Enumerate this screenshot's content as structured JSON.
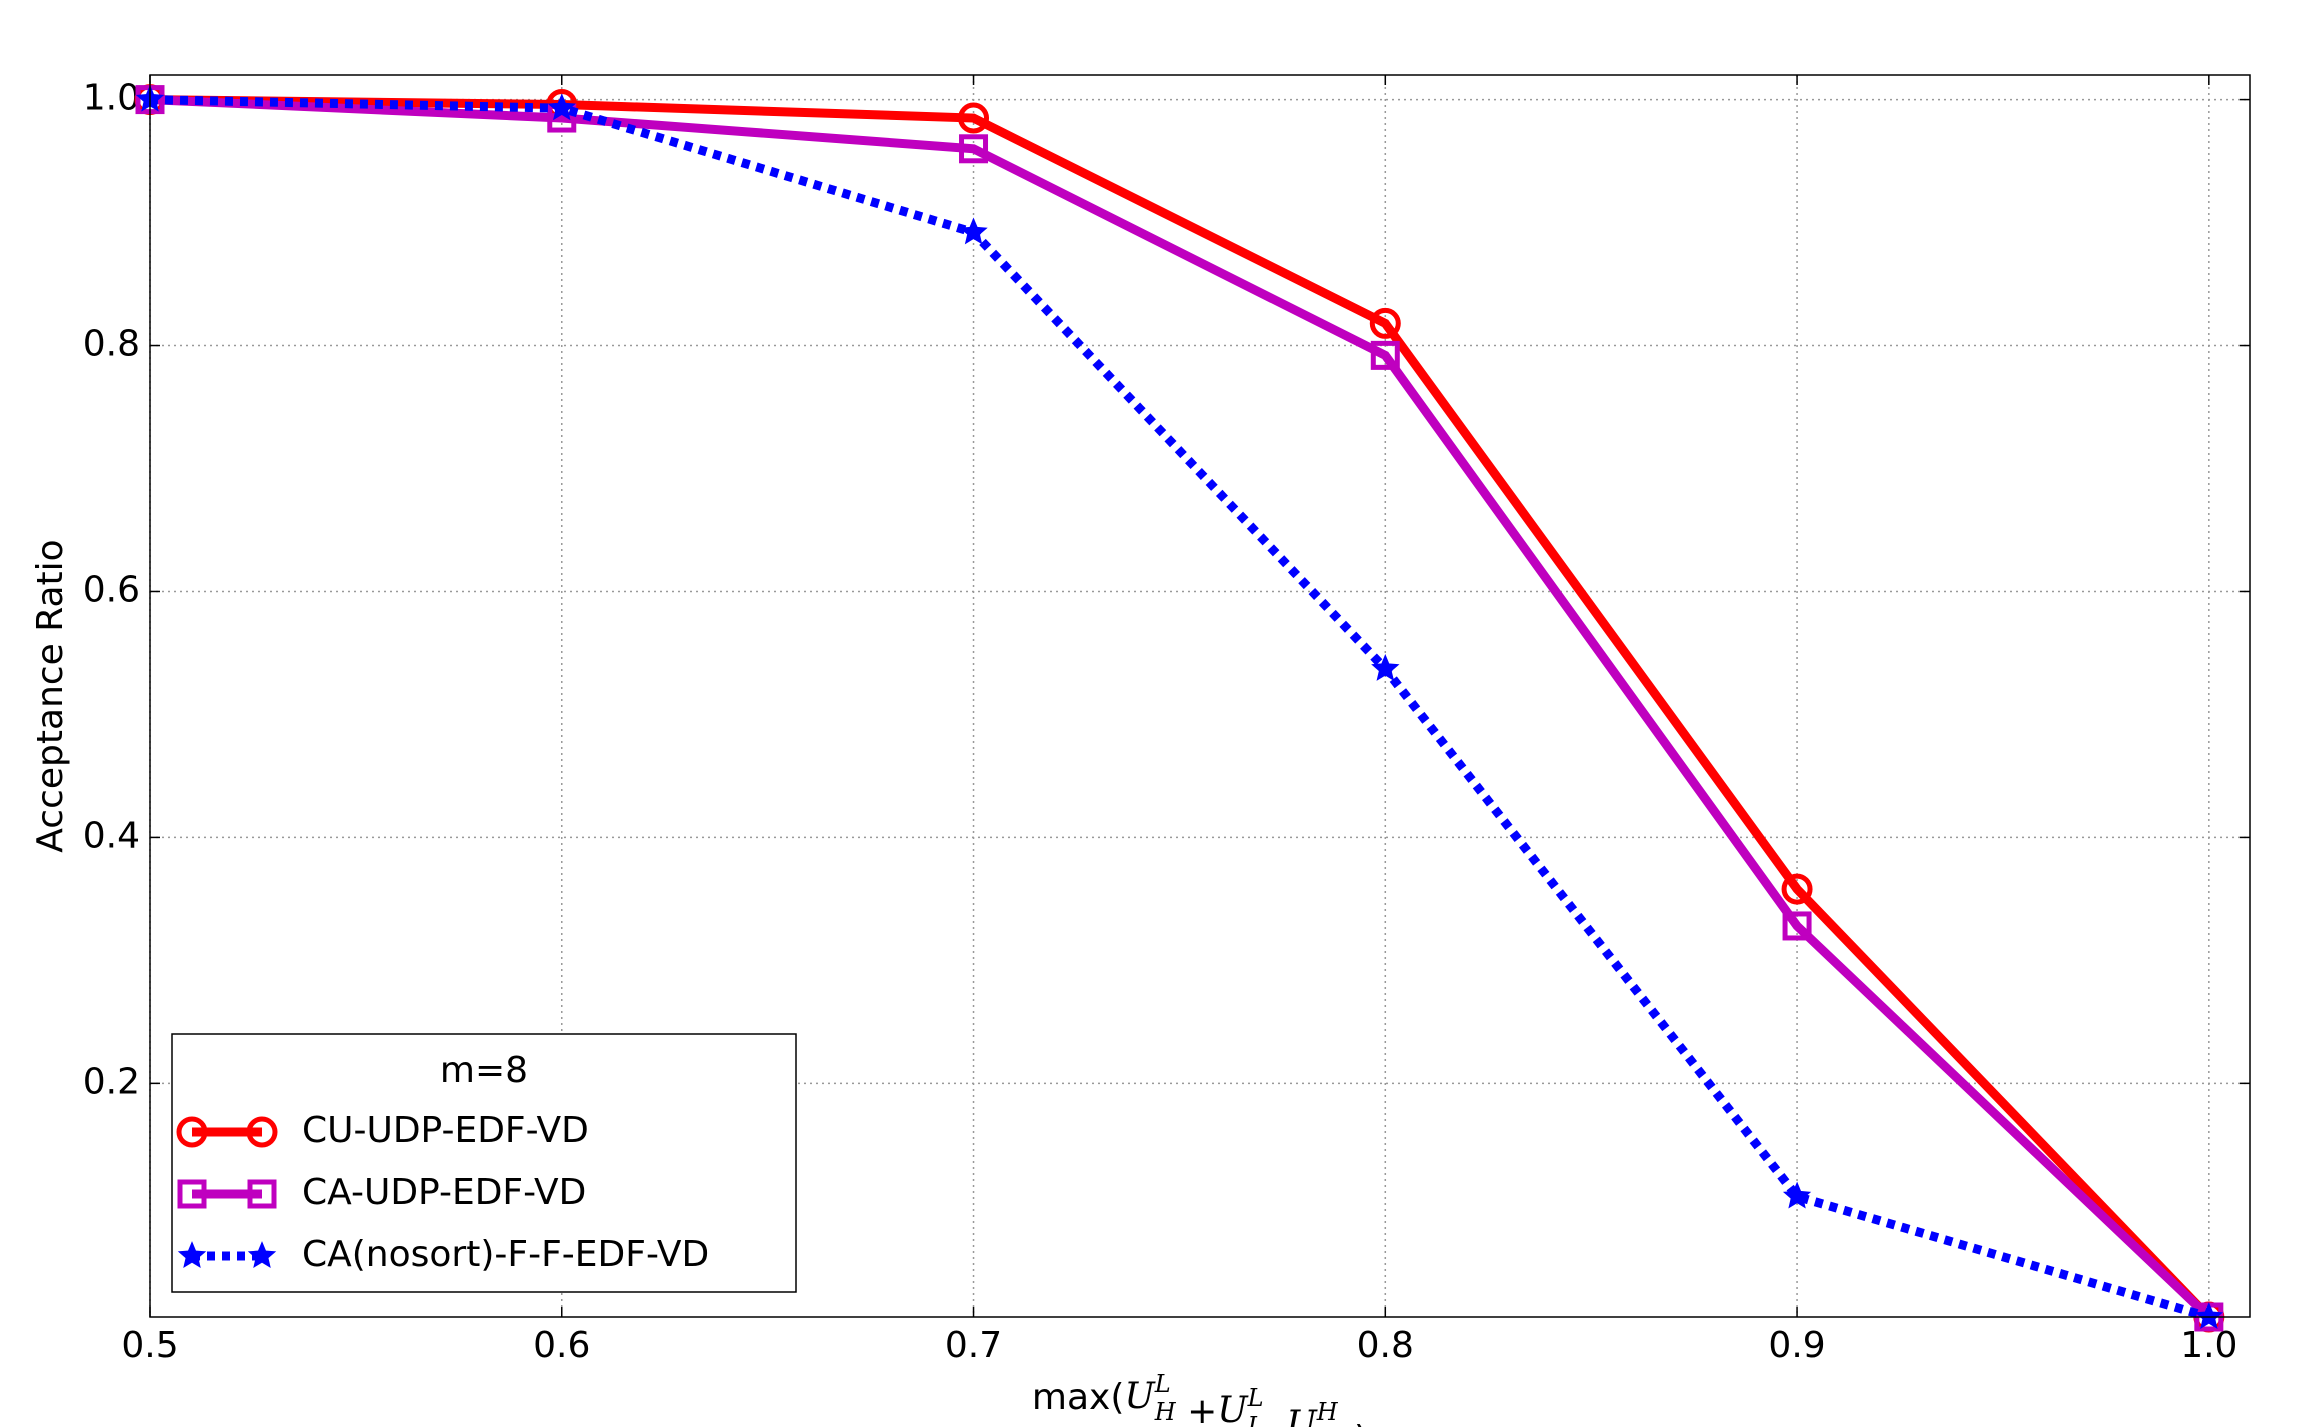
{
  "chart_data": {
    "type": "line",
    "xlabel": "max(U_H^L +U_L^L ,U_H^H )",
    "ylabel": "Acceptance Ratio",
    "x": [
      0.5,
      0.6,
      0.7,
      0.8,
      0.9,
      1.0
    ],
    "series": [
      {
        "name": "CU-UDP-EDF-VD",
        "color": "#ff0000",
        "marker": "circle",
        "linestyle": "solid",
        "values": [
          1.0,
          0.996,
          0.985,
          0.818,
          0.358,
          0.01
        ]
      },
      {
        "name": "CA-UDP-EDF-VD",
        "color": "#bf00bf",
        "marker": "square",
        "linestyle": "solid",
        "values": [
          1.0,
          0.985,
          0.96,
          0.792,
          0.328,
          0.01
        ]
      },
      {
        "name": "CA(nosort)-F-F-EDF-VD",
        "color": "#0000ff",
        "marker": "star",
        "linestyle": "dotted",
        "values": [
          1.0,
          0.993,
          0.892,
          0.537,
          0.108,
          0.01
        ]
      }
    ],
    "xlim": [
      0.5,
      1.01
    ],
    "ylim": [
      0.01,
      1.02
    ],
    "xticks": [
      0.5,
      0.6,
      0.7,
      0.8,
      0.9,
      {
        "value": 1,
        "label": "1.0"
      }
    ],
    "yticks": [
      0.2,
      0.4,
      0.6,
      0.8,
      {
        "value": 1,
        "label": "1.0"
      }
    ],
    "grid": true,
    "legend": {
      "title": "m=8",
      "loc": "lower left"
    }
  }
}
